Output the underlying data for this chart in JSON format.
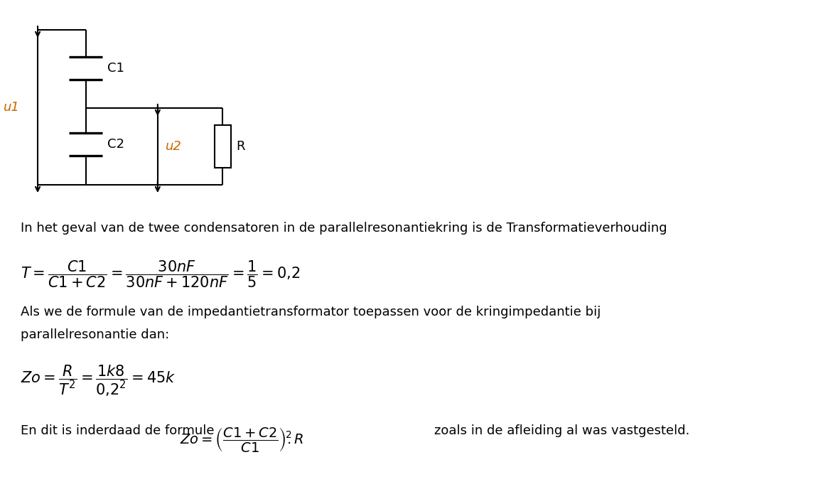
{
  "bg_color": "#ffffff",
  "text_color": "#000000",
  "orange_color": "#cc6600",
  "circuit_color": "#000000",
  "line1": "In het geval van de twee condensatoren in de parallelresonantiekring is de Transformatieverhouding",
  "line2": "Als we de formule van de impedantietransformator toepassen voor de kringimpedantie bij",
  "line3": "parallelresonantie dan:",
  "line4_pre": "En dit is inderdaad de formule ",
  "line4_post": "    zoals in de afleiding al was vastgesteld.",
  "label_u1": "u1",
  "label_u2": "u2",
  "label_C1": "C1",
  "label_C2": "C2",
  "label_R": "R",
  "font_size_text": 13,
  "font_size_math": 15,
  "font_size_label": 13
}
